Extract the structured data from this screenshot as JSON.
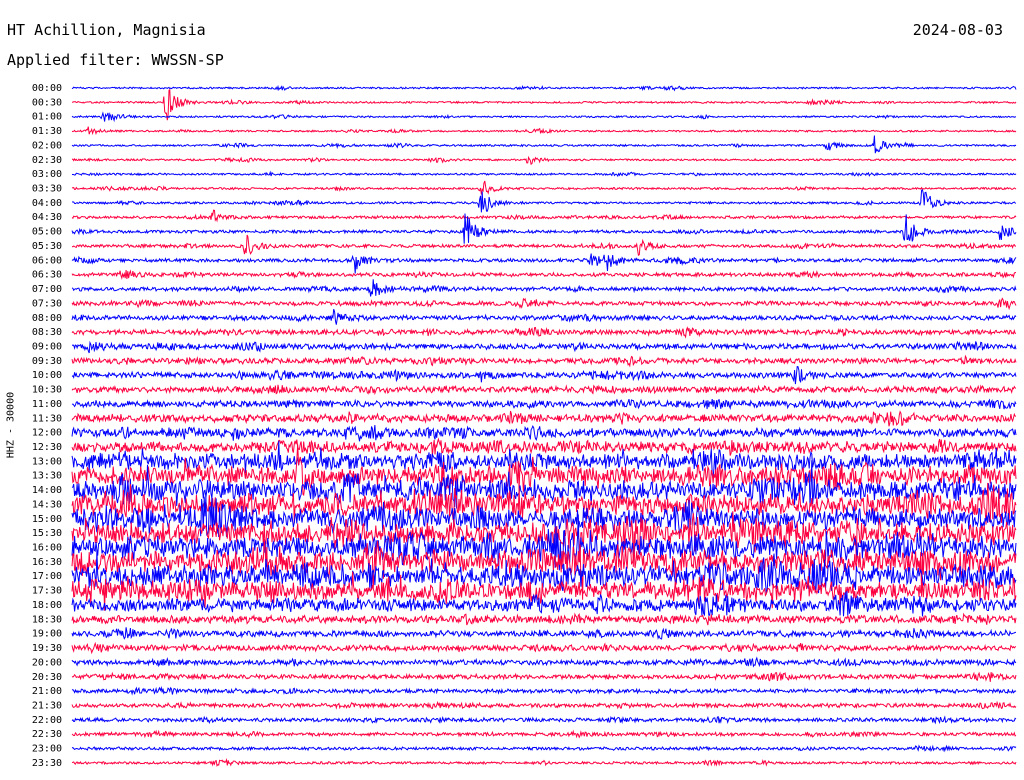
{
  "header": {
    "station": "HT Achillion, Magnisia",
    "date": "2024-08-03",
    "filter": "Applied filter: WWSSN-SP"
  },
  "chart_data": {
    "type": "line",
    "title": "HT Achillion, Magnisia",
    "subtitle": "Applied filter: WWSSN-SP",
    "ylabel": "HHZ - 30000",
    "row_labels": [
      "00:00",
      "00:30",
      "01:00",
      "01:30",
      "02:00",
      "02:30",
      "03:00",
      "03:30",
      "04:00",
      "04:30",
      "05:00",
      "05:30",
      "06:00",
      "06:30",
      "07:00",
      "07:30",
      "08:00",
      "08:30",
      "09:00",
      "09:30",
      "10:00",
      "10:30",
      "11:00",
      "11:30",
      "12:00",
      "12:30",
      "13:00",
      "13:30",
      "14:00",
      "14:30",
      "15:00",
      "15:30",
      "16:00",
      "16:30",
      "17:00",
      "17:30",
      "18:00",
      "18:30",
      "19:00",
      "19:30",
      "20:00",
      "20:30",
      "21:00",
      "21:30",
      "22:00",
      "22:30",
      "23:00",
      "23:30"
    ],
    "series_colors": [
      "#0000ff",
      "#ff0040"
    ],
    "row_noise_level": [
      0.05,
      0.07,
      0.07,
      0.06,
      0.08,
      0.08,
      0.1,
      0.12,
      0.15,
      0.25,
      0.3,
      0.35,
      0.4,
      0.45,
      0.5,
      0.55,
      0.6,
      0.7,
      0.8,
      0.8,
      0.8,
      0.9,
      1.0,
      1.2,
      1.4,
      1.8,
      2.6,
      3.2,
      3.4,
      3.5,
      3.6,
      3.7,
      3.8,
      3.8,
      3.6,
      3.2,
      2.2,
      1.2,
      0.9,
      0.8,
      0.7,
      0.6,
      0.5,
      0.5,
      0.45,
      0.4,
      0.3,
      0.2
    ],
    "events": [
      {
        "row": 1,
        "minute": 3,
        "amp": 20
      },
      {
        "row": 2,
        "minute": 1,
        "amp": 6
      },
      {
        "row": 3,
        "minute": 0.5,
        "amp": 4
      },
      {
        "row": 4,
        "minute": 24,
        "amp": 6
      },
      {
        "row": 4,
        "minute": 25.5,
        "amp": 9
      },
      {
        "row": 5,
        "minute": 14.5,
        "amp": 5
      },
      {
        "row": 7,
        "minute": 13,
        "amp": 10
      },
      {
        "row": 8,
        "minute": 13,
        "amp": 15
      },
      {
        "row": 8,
        "minute": 27,
        "amp": 16
      },
      {
        "row": 9,
        "minute": 4.5,
        "amp": 8
      },
      {
        "row": 10,
        "minute": 12.5,
        "amp": 22
      },
      {
        "row": 10,
        "minute": 26.5,
        "amp": 18
      },
      {
        "row": 10,
        "minute": 29.5,
        "amp": 10
      },
      {
        "row": 11,
        "minute": 5.5,
        "amp": 12
      },
      {
        "row": 11,
        "minute": 18,
        "amp": 9
      },
      {
        "row": 12,
        "minute": 9,
        "amp": 12
      },
      {
        "row": 12,
        "minute": 16.5,
        "amp": 8
      },
      {
        "row": 12,
        "minute": 17,
        "amp": 10
      },
      {
        "row": 13,
        "minute": 1.5,
        "amp": 9
      },
      {
        "row": 14,
        "minute": 9.5,
        "amp": 12
      },
      {
        "row": 15,
        "minute": 29.5,
        "amp": 10
      },
      {
        "row": 16,
        "minute": 8.3,
        "amp": 8
      },
      {
        "row": 18,
        "minute": 0.5,
        "amp": 6
      },
      {
        "row": 20,
        "minute": 13,
        "amp": 6
      },
      {
        "row": 20,
        "minute": 23,
        "amp": 8
      },
      {
        "row": 25,
        "minute": 11.5,
        "amp": 6
      }
    ],
    "xlim": [
      0,
      30
    ],
    "grid": false
  }
}
